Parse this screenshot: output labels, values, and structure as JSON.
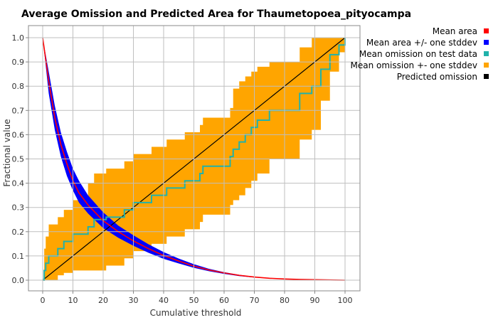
{
  "chart_data": {
    "type": "line",
    "title": "Average Omission and Predicted Area for Thaumetopoea_pityocampa",
    "xlabel": "Cumulative threshold",
    "ylabel": "Fractional value",
    "xlim": [
      0,
      100
    ],
    "ylim": [
      0,
      1.0
    ],
    "grid": true,
    "legend_placement": "top-right",
    "x_ticks": [
      "0",
      "10",
      "20",
      "30",
      "40",
      "50",
      "60",
      "70",
      "80",
      "90",
      "100"
    ],
    "y_ticks": [
      "0.0",
      "0.1",
      "0.2",
      "0.3",
      "0.4",
      "0.5",
      "0.6",
      "0.7",
      "0.8",
      "0.9",
      "1.0"
    ],
    "legend": [
      {
        "label": "Mean area",
        "color": "#ff0000"
      },
      {
        "label": "Mean area +/- one stddev",
        "color": "#0000ff"
      },
      {
        "label": "Mean omission on test data",
        "color": "#20b2aa"
      },
      {
        "label": "Mean omission +- one stddev",
        "color": "#ffa500"
      },
      {
        "label": "Predicted omission",
        "color": "#000000"
      }
    ],
    "series": [
      {
        "name": "Mean area",
        "color": "#ff0000",
        "x": [
          0,
          2,
          4,
          6,
          8,
          10,
          12,
          15,
          20,
          25,
          30,
          35,
          40,
          45,
          50,
          55,
          60,
          65,
          70,
          75,
          80,
          85,
          90,
          95,
          100
        ],
        "y": [
          1.0,
          0.82,
          0.67,
          0.56,
          0.48,
          0.41,
          0.36,
          0.31,
          0.245,
          0.2,
          0.162,
          0.13,
          0.102,
          0.079,
          0.058,
          0.042,
          0.03,
          0.02,
          0.013,
          0.008,
          0.005,
          0.003,
          0.002,
          0.001,
          0.0
        ]
      },
      {
        "name": "Mean area +/- one stddev",
        "color": "#0000ff",
        "x": [
          0,
          2,
          4,
          6,
          8,
          10,
          12,
          15,
          20,
          25,
          30,
          35,
          40,
          45,
          50,
          55,
          60,
          65,
          70,
          75,
          80,
          85,
          90,
          95,
          100
        ],
        "upper": [
          1.0,
          0.86,
          0.72,
          0.61,
          0.53,
          0.46,
          0.41,
          0.35,
          0.28,
          0.225,
          0.185,
          0.148,
          0.116,
          0.089,
          0.066,
          0.047,
          0.033,
          0.022,
          0.014,
          0.009,
          0.006,
          0.004,
          0.002,
          0.001,
          0.0
        ],
        "lower": [
          1.0,
          0.77,
          0.62,
          0.51,
          0.43,
          0.37,
          0.32,
          0.275,
          0.215,
          0.175,
          0.142,
          0.113,
          0.088,
          0.069,
          0.051,
          0.037,
          0.026,
          0.017,
          0.011,
          0.007,
          0.004,
          0.003,
          0.001,
          0.0,
          0.0
        ]
      },
      {
        "name": "Mean omission on test data",
        "color": "#20b2aa",
        "step": true,
        "x": [
          0,
          0.5,
          1,
          2,
          5,
          7,
          10,
          15,
          17,
          21,
          27,
          30,
          36,
          41,
          47,
          52,
          53,
          62,
          63,
          65,
          67,
          69,
          71,
          75,
          85,
          89,
          92,
          95,
          98,
          100
        ],
        "y": [
          0.0,
          0.04,
          0.07,
          0.1,
          0.13,
          0.16,
          0.19,
          0.22,
          0.25,
          0.26,
          0.29,
          0.32,
          0.35,
          0.38,
          0.41,
          0.44,
          0.47,
          0.51,
          0.54,
          0.57,
          0.6,
          0.63,
          0.66,
          0.7,
          0.77,
          0.8,
          0.87,
          0.93,
          0.97,
          1.0
        ]
      },
      {
        "name": "Mean omission +- one stddev",
        "color": "#ffa500",
        "step": true,
        "x": [
          0,
          0.5,
          1,
          2,
          5,
          7,
          10,
          15,
          17,
          21,
          27,
          30,
          36,
          41,
          47,
          52,
          53,
          62,
          63,
          65,
          67,
          69,
          71,
          75,
          85,
          89,
          92,
          95,
          98,
          100
        ],
        "upper": [
          0.0,
          0.13,
          0.18,
          0.23,
          0.26,
          0.29,
          0.33,
          0.4,
          0.44,
          0.46,
          0.49,
          0.52,
          0.55,
          0.58,
          0.61,
          0.64,
          0.67,
          0.71,
          0.79,
          0.82,
          0.84,
          0.86,
          0.88,
          0.9,
          0.96,
          1.0,
          1.0,
          1.0,
          1.0,
          1.0
        ],
        "lower": [
          0.0,
          0.0,
          0.0,
          0.0,
          0.02,
          0.03,
          0.04,
          0.04,
          0.04,
          0.06,
          0.09,
          0.12,
          0.15,
          0.18,
          0.21,
          0.24,
          0.27,
          0.31,
          0.33,
          0.35,
          0.38,
          0.41,
          0.44,
          0.5,
          0.58,
          0.62,
          0.74,
          0.86,
          0.94,
          1.0
        ]
      },
      {
        "name": "Predicted omission",
        "color": "#000000",
        "x": [
          0,
          100
        ],
        "y": [
          0.0,
          1.0
        ]
      }
    ]
  }
}
